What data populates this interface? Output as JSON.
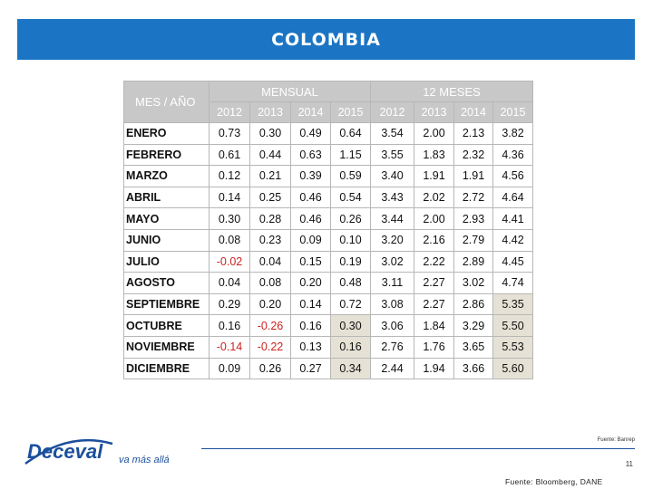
{
  "banner": {
    "title": "COLOMBIA"
  },
  "table": {
    "corner_label": "MES / AÑO",
    "group_monthly": "MENSUAL",
    "group_12m": "12 MESES",
    "years": [
      "2012",
      "2013",
      "2014",
      "2015",
      "2012",
      "2013",
      "2014",
      "2015"
    ],
    "rows": [
      {
        "mes": "ENERO",
        "vals": [
          "0.73",
          "0.30",
          "0.49",
          "0.64",
          "3.54",
          "2.00",
          "2.13",
          "3.82"
        ]
      },
      {
        "mes": "FEBRERO",
        "vals": [
          "0.61",
          "0.44",
          "0.63",
          "1.15",
          "3.55",
          "1.83",
          "2.32",
          "4.36"
        ]
      },
      {
        "mes": "MARZO",
        "vals": [
          "0.12",
          "0.21",
          "0.39",
          "0.59",
          "3.40",
          "1.91",
          "1.91",
          "4.56"
        ]
      },
      {
        "mes": "ABRIL",
        "vals": [
          "0.14",
          "0.25",
          "0.46",
          "0.54",
          "3.43",
          "2.02",
          "2.72",
          "4.64"
        ]
      },
      {
        "mes": "MAYO",
        "vals": [
          "0.30",
          "0.28",
          "0.46",
          "0.26",
          "3.44",
          "2.00",
          "2.93",
          "4.41"
        ]
      },
      {
        "mes": "JUNIO",
        "vals": [
          "0.08",
          "0.23",
          "0.09",
          "0.10",
          "3.20",
          "2.16",
          "2.79",
          "4.42"
        ]
      },
      {
        "mes": "JULIO",
        "vals": [
          "-0.02",
          "0.04",
          "0.15",
          "0.19",
          "3.02",
          "2.22",
          "2.89",
          "4.45"
        ]
      },
      {
        "mes": "AGOSTO",
        "vals": [
          "0.04",
          "0.08",
          "0.20",
          "0.48",
          "3.11",
          "2.27",
          "3.02",
          "4.74"
        ]
      },
      {
        "mes": "SEPTIEMBRE",
        "vals": [
          "0.29",
          "0.20",
          "0.14",
          "0.72",
          "3.08",
          "2.27",
          "2.86",
          "5.35"
        ]
      },
      {
        "mes": "OCTUBRE",
        "vals": [
          "0.16",
          "-0.26",
          "0.16",
          "0.30",
          "3.06",
          "1.84",
          "3.29",
          "5.50"
        ]
      },
      {
        "mes": "NOVIEMBRE",
        "vals": [
          "-0.14",
          "-0.22",
          "0.13",
          "0.16",
          "2.76",
          "1.76",
          "3.65",
          "5.53"
        ]
      },
      {
        "mes": "DICIEMBRE",
        "vals": [
          "0.09",
          "0.26",
          "0.27",
          "0.34",
          "2.44",
          "1.94",
          "3.66",
          "5.60"
        ]
      }
    ]
  },
  "footer": {
    "logo_text": "Deceval",
    "tagline": "va más allá",
    "source_small": "Fuente: Banrep",
    "page_number": "11",
    "source": "Fuente: Bloomberg, DANE"
  },
  "colors": {
    "banner": "#1b75c4",
    "negative": "#cc2222",
    "highlight": "#e5e1d4"
  }
}
